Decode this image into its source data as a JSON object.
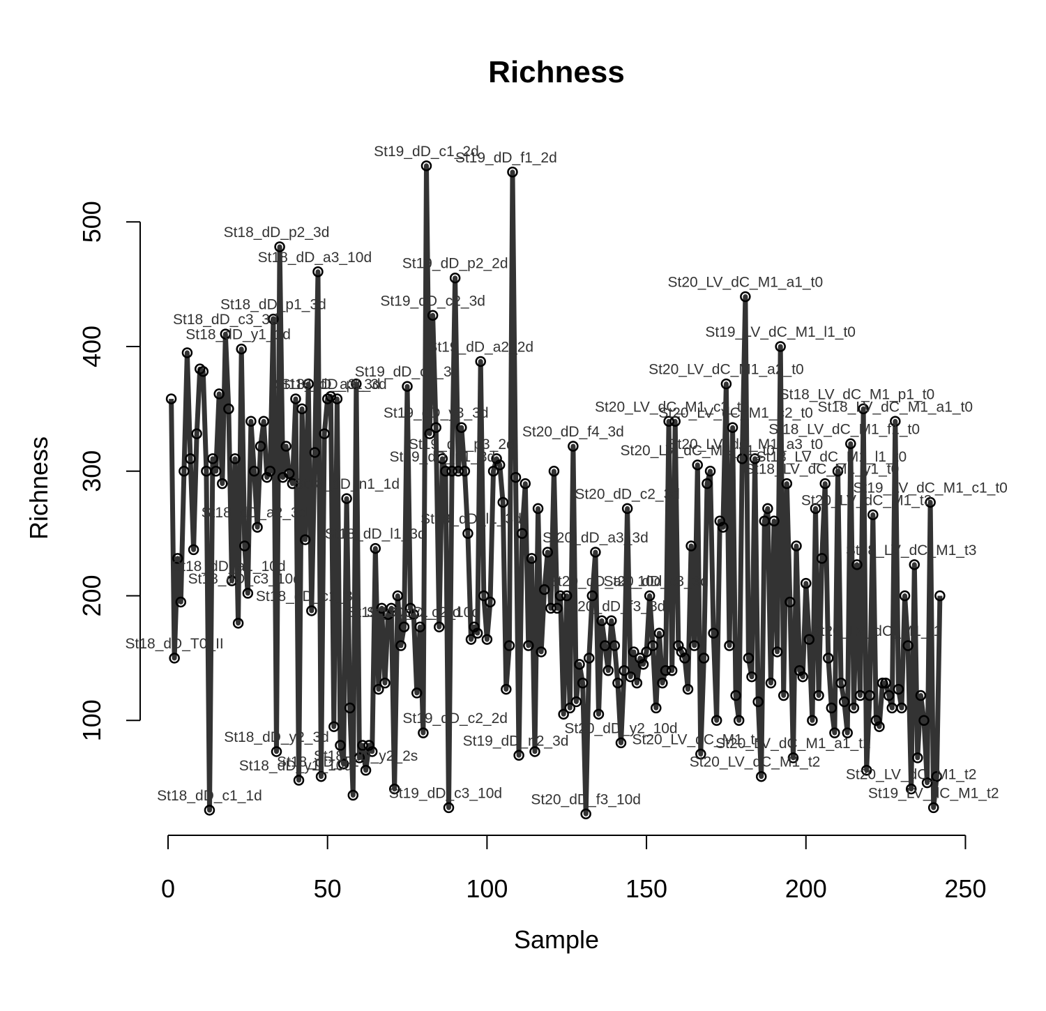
{
  "chart_data": {
    "type": "line",
    "title": "Richness",
    "xlabel": "Sample",
    "ylabel": "Richness",
    "xlim": [
      0,
      250
    ],
    "ylim": [
      25,
      550
    ],
    "x_ticks": [
      0,
      50,
      100,
      150,
      200,
      250
    ],
    "y_ticks": [
      100,
      200,
      300,
      400,
      500
    ],
    "grid": false,
    "legend": "none",
    "line_color": "#333333",
    "values": [
      358,
      150,
      230,
      195,
      300,
      395,
      310,
      237,
      330,
      382,
      380,
      300,
      28,
      310,
      300,
      362,
      290,
      410,
      350,
      212,
      310,
      178,
      398,
      240,
      202,
      340,
      300,
      255,
      320,
      340,
      295,
      300,
      422,
      75,
      480,
      295,
      320,
      298,
      290,
      358,
      52,
      350,
      245,
      370,
      188,
      315,
      460,
      55,
      330,
      358,
      360,
      95,
      358,
      80,
      65,
      278,
      110,
      40,
      370,
      70,
      80,
      60,
      80,
      75,
      238,
      125,
      190,
      130,
      185,
      190,
      45,
      200,
      160,
      175,
      368,
      190,
      185,
      122,
      175,
      90,
      545,
      330,
      425,
      335,
      175,
      310,
      300,
      30,
      300,
      455,
      300,
      335,
      300,
      250,
      165,
      175,
      170,
      388,
      200,
      165,
      195,
      300,
      310,
      305,
      275,
      125,
      160,
      540,
      295,
      72,
      250,
      290,
      160,
      230,
      75,
      270,
      155,
      205,
      235,
      190,
      300,
      190,
      200,
      105,
      200,
      110,
      320,
      115,
      145,
      130,
      25,
      150,
      200,
      235,
      105,
      180,
      160,
      140,
      180,
      160,
      130,
      82,
      140,
      270,
      135,
      155,
      130,
      150,
      145,
      155,
      200,
      160,
      110,
      170,
      130,
      140,
      340,
      140,
      340,
      160,
      155,
      150,
      125,
      240,
      160,
      305,
      73,
      150,
      290,
      300,
      170,
      100,
      260,
      255,
      370,
      160,
      335,
      120,
      100,
      310,
      440,
      150,
      135,
      310,
      115,
      55,
      260,
      270,
      130,
      260,
      155,
      400,
      120,
      290,
      195,
      70,
      240,
      140,
      135,
      210,
      165,
      100,
      270,
      120,
      230,
      290,
      150,
      110,
      90,
      300,
      130,
      115,
      90,
      322,
      110,
      225,
      120,
      350,
      60,
      120,
      265,
      100,
      95,
      130,
      130,
      120,
      110,
      340,
      125,
      110,
      200,
      160,
      45,
      225,
      70,
      120,
      100,
      50,
      275,
      30,
      55,
      200
    ],
    "point_labels": [
      {
        "text": "St18_dD_c1_1d",
        "x": 13,
        "y": 28
      },
      {
        "text": "St18_dD_T0_II",
        "x": 2,
        "y": 150
      },
      {
        "text": "St18_dD_c3_10d",
        "x": 24,
        "y": 202
      },
      {
        "text": "St18_dD_a1_10d",
        "x": 19,
        "y": 212
      },
      {
        "text": "St18_dD_p2_3d",
        "x": 34,
        "y": 480
      },
      {
        "text": "St18_dD_a3_10d",
        "x": 46,
        "y": 460
      },
      {
        "text": "St18_dD_p1_3d",
        "x": 33,
        "y": 422
      },
      {
        "text": "St18_dD_c3_3d",
        "x": 18,
        "y": 410
      },
      {
        "text": "St18_dD_y1_1d",
        "x": 22,
        "y": 398
      },
      {
        "text": "St18_dD_a3_3d",
        "x": 50,
        "y": 358
      },
      {
        "text": "St18_dD_p1_3d",
        "x": 52,
        "y": 358
      },
      {
        "text": "St18_dD_n1_1d",
        "x": 56,
        "y": 278
      },
      {
        "text": "St18_dD_a2_3d",
        "x": 27,
        "y": 255
      },
      {
        "text": "St18_dD_l1_3d",
        "x": 65,
        "y": 238
      },
      {
        "text": "St18_dD_c1_3d",
        "x": 44,
        "y": 188
      },
      {
        "text": "St18_dD_y2_3d",
        "x": 34,
        "y": 75
      },
      {
        "text": "St18_dD_y1_10d",
        "x": 40,
        "y": 52
      },
      {
        "text": "St18_dD_T1",
        "x": 47,
        "y": 55
      },
      {
        "text": "St18_dD_y2_2s",
        "x": 62,
        "y": 60
      },
      {
        "text": "St19_dD_c3_10d",
        "x": 87,
        "y": 30
      },
      {
        "text": "St19_dD_c1_2d",
        "x": 81,
        "y": 545
      },
      {
        "text": "St19_dD_f1_2d",
        "x": 106,
        "y": 540
      },
      {
        "text": "St19_dD_p2_2d",
        "x": 90,
        "y": 455
      },
      {
        "text": "St19_dD_c2_3d",
        "x": 83,
        "y": 425
      },
      {
        "text": "St19_dD_c1_3d",
        "x": 75,
        "y": 368
      },
      {
        "text": "St19_dD_a2_2d",
        "x": 98,
        "y": 388
      },
      {
        "text": "St19_dD_y3_3d",
        "x": 84,
        "y": 335
      },
      {
        "text": "St19_dD_p3_2d",
        "x": 92,
        "y": 310
      },
      {
        "text": "St19_dD_p1_3d",
        "x": 86,
        "y": 300
      },
      {
        "text": "St19_dD_c2_10d",
        "x": 80,
        "y": 175
      },
      {
        "text": "St19_dD_y1_10d",
        "x": 74,
        "y": 175
      },
      {
        "text": "St19_dD_c2_2d",
        "x": 90,
        "y": 90
      },
      {
        "text": "St19_dD_n2_3d",
        "x": 109,
        "y": 72
      },
      {
        "text": "St19_dD_l1_3d",
        "x": 95,
        "y": 250
      },
      {
        "text": "St20_dD_f3_10d",
        "x": 131,
        "y": 25
      },
      {
        "text": "St20_dD_f4_3d",
        "x": 127,
        "y": 320
      },
      {
        "text": "St20_dD_c2_3d",
        "x": 144,
        "y": 270
      },
      {
        "text": "St20_dD_a3_3d",
        "x": 134,
        "y": 235
      },
      {
        "text": "St20_dD_f3_3d",
        "x": 140,
        "y": 180
      },
      {
        "text": "St20_dD_c3_3d",
        "x": 153,
        "y": 200
      },
      {
        "text": "St20_dD_y2_10d",
        "x": 142,
        "y": 82
      },
      {
        "text": "St20_dD_a3_10d",
        "x": 137,
        "y": 200
      },
      {
        "text": "St20_LV_dC_M1_a1_t0",
        "x": 181,
        "y": 440
      },
      {
        "text": "St19_LV_dC_M1_l1_t0",
        "x": 192,
        "y": 400
      },
      {
        "text": "St20_LV_dC_M1_a2_t0",
        "x": 175,
        "y": 370
      },
      {
        "text": "St20_LV_dC_M1_c2_t0",
        "x": 178,
        "y": 335
      },
      {
        "text": "St20_LV_dC_M1_a3_t0",
        "x": 181,
        "y": 310
      },
      {
        "text": "St18_LV_dC_M1_p1_t0",
        "x": 216,
        "y": 350
      },
      {
        "text": "St18_LV_dC_M1_a1_t0",
        "x": 228,
        "y": 340
      },
      {
        "text": "St18_LV_dC_M1_f1_t0",
        "x": 212,
        "y": 322
      },
      {
        "text": "St20_LV_dC_M1_c3_t0",
        "x": 158,
        "y": 340
      },
      {
        "text": "St20_LV_dC_M1_y1_t0",
        "x": 166,
        "y": 305
      },
      {
        "text": "St18_LV_dC_M1_l1_t0",
        "x": 208,
        "y": 300
      },
      {
        "text": "St18_LV_dC_M1_y1_t0",
        "x": 205,
        "y": 290
      },
      {
        "text": "St19_LV_dC_M1_c1_t0",
        "x": 239,
        "y": 275
      },
      {
        "text": "St20_LV_dC_M1_t3",
        "x": 219,
        "y": 265
      },
      {
        "text": "St18_LV_dC_M1_t3",
        "x": 233,
        "y": 225
      },
      {
        "text": "St20_LV_dC_M1_a1_t2",
        "x": 196,
        "y": 70
      },
      {
        "text": "St20_LV_dC_M1_t2",
        "x": 184,
        "y": 55
      },
      {
        "text": "St20_LV_dC_M1_t2",
        "x": 233,
        "y": 45
      },
      {
        "text": "St19_LV_dC_M1_t2",
        "x": 240,
        "y": 30
      },
      {
        "text": "St20_LV_dC_M1_t4",
        "x": 166,
        "y": 73
      },
      {
        "text": "St20_LV_dC_M1_t1",
        "x": 222,
        "y": 160
      }
    ]
  }
}
